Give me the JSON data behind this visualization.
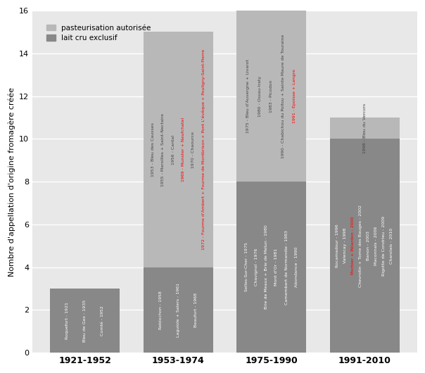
{
  "categories": [
    "1921-1952",
    "1953-1974",
    "1975-1990",
    "1991-2010"
  ],
  "dark_values": [
    3,
    4,
    8,
    10
  ],
  "light_values": [
    0,
    11,
    8,
    1
  ],
  "dark_color": "#888888",
  "light_color": "#b8b8b8",
  "bg_color": "#e8e8e8",
  "ylabel": "Nombre d'appellation d'origine fromagère créée",
  "ylim": [
    0,
    16
  ],
  "yticks": [
    0,
    2,
    4,
    6,
    8,
    10,
    12,
    14,
    16
  ],
  "legend_light": "pasteurisation autorisée",
  "legend_dark": "lait cru exclusif",
  "bar_width": 0.75,
  "dark_annotations": {
    "1921-1952": [
      "Roquefort - 1921",
      "Bleu de Gex - 1935",
      "Comté - 1952"
    ],
    "1953-1974": [
      "Reblochon - 1958",
      "Laguiole + Salers - 1961",
      "Beaufort - 1968"
    ],
    "1975-1990": [
      "Selles-Sur-Cher - 1975",
      "Chavignol - 1976",
      "Brie de Meaux + Brie de Melun - 1980",
      "Mont d'Or - 1981",
      "Camembert de Normandie - 1983",
      "Abondance - 1990"
    ],
    "1991-2010": [
      "Rocamadour - 1996",
      "Valencay - 1998",
      "Morbier + Pélardon - 2000",
      "Chevrotin + Tome des Bauges - 2002",
      "Banon - 2003",
      "Maconnais - 2006",
      "Rigotte de Condrieu - 2009",
      "Charolais - 2010"
    ]
  },
  "dark_red_indices": {
    "1921-1952": [],
    "1953-1974": [],
    "1975-1990": [],
    "1991-2010": [
      2
    ]
  },
  "light_annotations": {
    "1921-1952": [],
    "1953-1974": [
      "1953 - Bleu des Causses",
      "1955 - Maroilles + Saint-Nectaire",
      "1956 - Cantal",
      "1969 - Munster + Neufchatel",
      "1970 - Chaource",
      "1972 - Fourme d'Ambert + Fourme de Montbrison + Pont L'évêque + Pouligny-Saint-Pierre"
    ],
    "1975-1990": [
      "1975 - Bleu d'Auvergne + Livarot",
      "1980 - Ossau-Iraty",
      "1983 - Picodon",
      "1990 - Chabichou du Poitou + Sainte Maure de Touraine",
      "1991 - Epoisse + Langre"
    ],
    "1991-2010": [
      "1998 - Bleu du Vercors"
    ]
  },
  "light_red_indices": {
    "1921-1952": [],
    "1953-1974": [
      3,
      5
    ],
    "1975-1990": [
      4
    ],
    "1991-2010": []
  },
  "light_text_color": "#444444",
  "dark_text_color": "#ffffff",
  "font_size": 4.5,
  "xlabel_fontsize": 9,
  "ylabel_fontsize": 8,
  "tick_fontsize": 8,
  "legend_fontsize": 7.5
}
